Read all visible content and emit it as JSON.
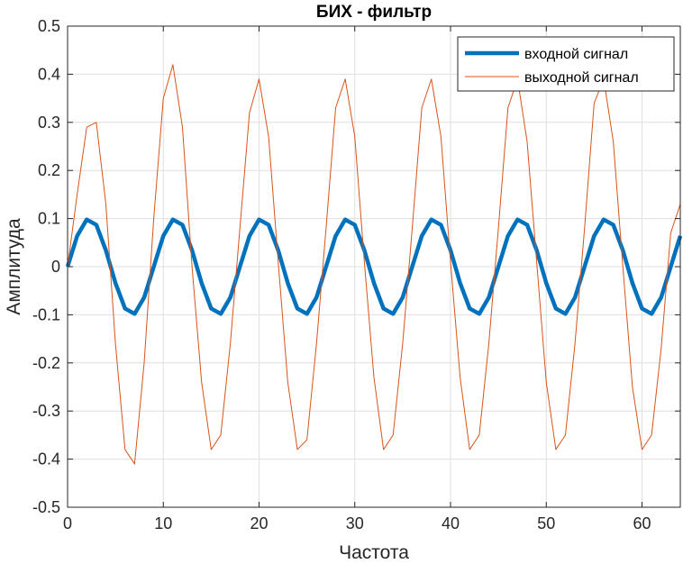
{
  "chart_data": {
    "type": "line",
    "title": "БИХ - фильтр",
    "xlabel": "Частота",
    "ylabel": "Амплитуда",
    "xlim": [
      0,
      64
    ],
    "ylim": [
      -0.5,
      0.5
    ],
    "xticks": [
      0,
      10,
      20,
      30,
      40,
      50,
      60
    ],
    "xtick_labels": [
      "0",
      "10",
      "20",
      "30",
      "40",
      "50",
      "60"
    ],
    "yticks": [
      -0.5,
      -0.4,
      -0.3,
      -0.2,
      -0.1,
      0,
      0.1,
      0.2,
      0.3,
      0.4,
      0.5
    ],
    "ytick_labels": [
      "-0.5",
      "-0.4",
      "-0.3",
      "-0.2",
      "-0.1",
      "0",
      "0.1",
      "0.2",
      "0.3",
      "0.4",
      "0.5"
    ],
    "grid": true,
    "legend_position": "top-right",
    "series": [
      {
        "name": "входной сигнал",
        "color": "#0072BD",
        "x": [
          0,
          1,
          2,
          3,
          4,
          5,
          6,
          7,
          8,
          9,
          10,
          11,
          12,
          13,
          14,
          15,
          16,
          17,
          18,
          19,
          20,
          21,
          22,
          23,
          24,
          25,
          26,
          27,
          28,
          29,
          30,
          31,
          32,
          33,
          34,
          35,
          36,
          37,
          38,
          39,
          40,
          41,
          42,
          43,
          44,
          45,
          46,
          47,
          48,
          49,
          50,
          51,
          52,
          53,
          54,
          55,
          56,
          57,
          58,
          59,
          60,
          61,
          62,
          63,
          64
        ],
        "values": [
          0,
          0.064,
          0.098,
          0.087,
          0.034,
          -0.034,
          -0.087,
          -0.098,
          -0.064,
          0,
          0.064,
          0.098,
          0.087,
          0.034,
          -0.034,
          -0.087,
          -0.098,
          -0.064,
          0,
          0.064,
          0.098,
          0.087,
          0.034,
          -0.034,
          -0.087,
          -0.098,
          -0.064,
          0,
          0.064,
          0.098,
          0.087,
          0.034,
          -0.034,
          -0.087,
          -0.098,
          -0.064,
          0,
          0.064,
          0.098,
          0.087,
          0.034,
          -0.034,
          -0.087,
          -0.098,
          -0.064,
          0,
          0.064,
          0.098,
          0.087,
          0.034,
          -0.034,
          -0.087,
          -0.098,
          -0.064,
          0,
          0.064,
          0.098,
          0.087,
          0.034,
          -0.034,
          -0.087,
          -0.098,
          -0.064,
          0,
          0.064
        ]
      },
      {
        "name": "выходной сигнал",
        "color": "#D95319",
        "x": [
          0,
          1,
          2,
          3,
          4,
          5,
          6,
          7,
          8,
          9,
          10,
          11,
          12,
          13,
          14,
          15,
          16,
          17,
          18,
          19,
          20,
          21,
          22,
          23,
          24,
          25,
          26,
          27,
          28,
          29,
          30,
          31,
          32,
          33,
          34,
          35,
          36,
          37,
          38,
          39,
          40,
          41,
          42,
          43,
          44,
          45,
          46,
          47,
          48,
          49,
          50,
          51,
          52,
          53,
          54,
          55,
          56,
          57,
          58,
          59,
          60,
          61,
          62,
          63,
          64
        ],
        "values": [
          0,
          0.15,
          0.29,
          0.3,
          0.13,
          -0.16,
          -0.38,
          -0.41,
          -0.2,
          0.1,
          0.35,
          0.42,
          0.29,
          0.0,
          -0.24,
          -0.38,
          -0.35,
          -0.16,
          0.08,
          0.32,
          0.39,
          0.27,
          0.01,
          -0.24,
          -0.38,
          -0.36,
          -0.16,
          0.08,
          0.33,
          0.39,
          0.27,
          0.01,
          -0.23,
          -0.38,
          -0.35,
          -0.16,
          0.08,
          0.33,
          0.39,
          0.27,
          0.01,
          -0.23,
          -0.38,
          -0.35,
          -0.16,
          0.08,
          0.33,
          0.39,
          0.26,
          0.01,
          -0.24,
          -0.38,
          -0.35,
          -0.16,
          0.08,
          0.34,
          0.39,
          0.26,
          0.0,
          -0.25,
          -0.38,
          -0.35,
          -0.17,
          0.07,
          0.13
        ]
      }
    ]
  }
}
